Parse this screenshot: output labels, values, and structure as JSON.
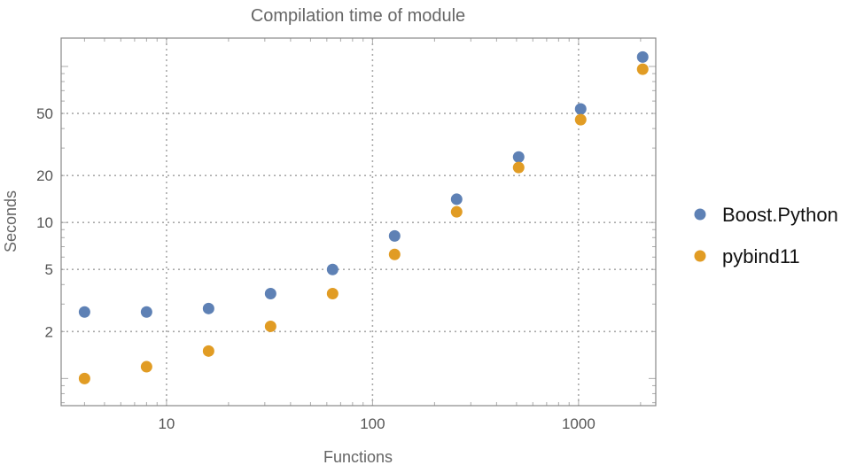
{
  "chart_data": {
    "type": "scatter",
    "title": "Compilation time of module",
    "xlabel": "Functions",
    "ylabel": "Seconds",
    "xscale": "log",
    "yscale": "log",
    "xlim": [
      3.08,
      2370
    ],
    "ylim": [
      0.67,
      152
    ],
    "x_ticks": [
      10,
      100,
      1000
    ],
    "x_tick_labels": [
      "10",
      "100",
      "1000"
    ],
    "y_ticks": [
      2,
      5,
      10,
      20,
      50
    ],
    "y_tick_labels": [
      "2",
      "5",
      "10",
      "20",
      "50"
    ],
    "grid": true,
    "legend_position": "right",
    "x": [
      4,
      8,
      16,
      32,
      64,
      128,
      256,
      512,
      1024,
      2048
    ],
    "series": [
      {
        "name": "Boost.Python",
        "color": "#5e81b5",
        "values": [
          2.67,
          2.67,
          2.81,
          3.5,
          5.0,
          8.2,
          14.1,
          26.3,
          53.4,
          115
        ]
      },
      {
        "name": "pybind11",
        "color": "#e19c24",
        "values": [
          1.0,
          1.19,
          1.5,
          2.16,
          3.5,
          6.24,
          11.7,
          22.5,
          45.6,
          96
        ]
      }
    ]
  }
}
